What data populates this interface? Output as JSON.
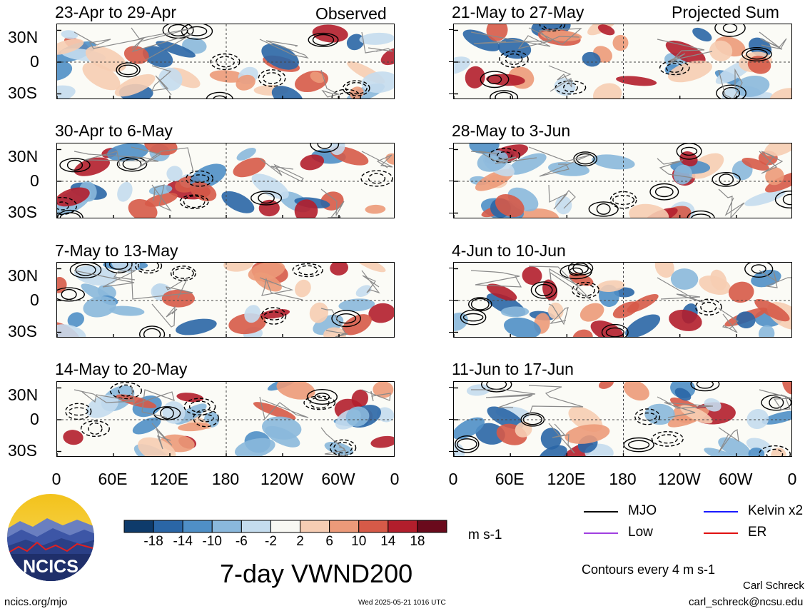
{
  "header": {
    "left_label": "Observed",
    "right_label": "Projected Sum"
  },
  "chart_data": {
    "type": "heatmap",
    "title": "7-day VWND200",
    "units": "m s-1",
    "contour_note": "Contours every 4 m s-1",
    "x_ticks": [
      "0",
      "60E",
      "120E",
      "180",
      "120W",
      "60W",
      "0"
    ],
    "y_ticks": [
      "30N",
      "0",
      "30S"
    ],
    "panels_observed": [
      {
        "period": "23-Apr to 29-Apr"
      },
      {
        "period": "30-Apr to 6-May"
      },
      {
        "period": "7-May to 13-May"
      },
      {
        "period": "14-May to 20-May"
      }
    ],
    "panels_projected": [
      {
        "period": "21-May to 27-May"
      },
      {
        "period": "28-May to 3-Jun"
      },
      {
        "period": "4-Jun to 10-Jun"
      },
      {
        "period": "11-Jun to 17-Jun"
      }
    ],
    "colorbar": {
      "labels": [
        "-18",
        "-14",
        "-10",
        "-6",
        "-2",
        "2",
        "6",
        "10",
        "14",
        "18"
      ],
      "colors": [
        "#0e3b6b",
        "#2a66a6",
        "#4f8fc6",
        "#8ab8dc",
        "#c4dcee",
        "#f8f8f3",
        "#f6cdb3",
        "#ec9a79",
        "#d65a48",
        "#b21e2c",
        "#6a0a1c"
      ]
    },
    "legend": [
      {
        "name": "MJO",
        "color": "#000000"
      },
      {
        "name": "Kelvin x2",
        "color": "#1a1aff"
      },
      {
        "name": "Low",
        "color": "#a040e0"
      },
      {
        "name": "ER",
        "color": "#e01010"
      }
    ]
  },
  "footer": {
    "logo_text": "NCICS",
    "url": "ncics.org/mjo",
    "timestamp": "Wed 2025-05-21 1016 UTC",
    "author": "Carl Schreck",
    "email": "carl_schreck@ncsu.edu"
  }
}
